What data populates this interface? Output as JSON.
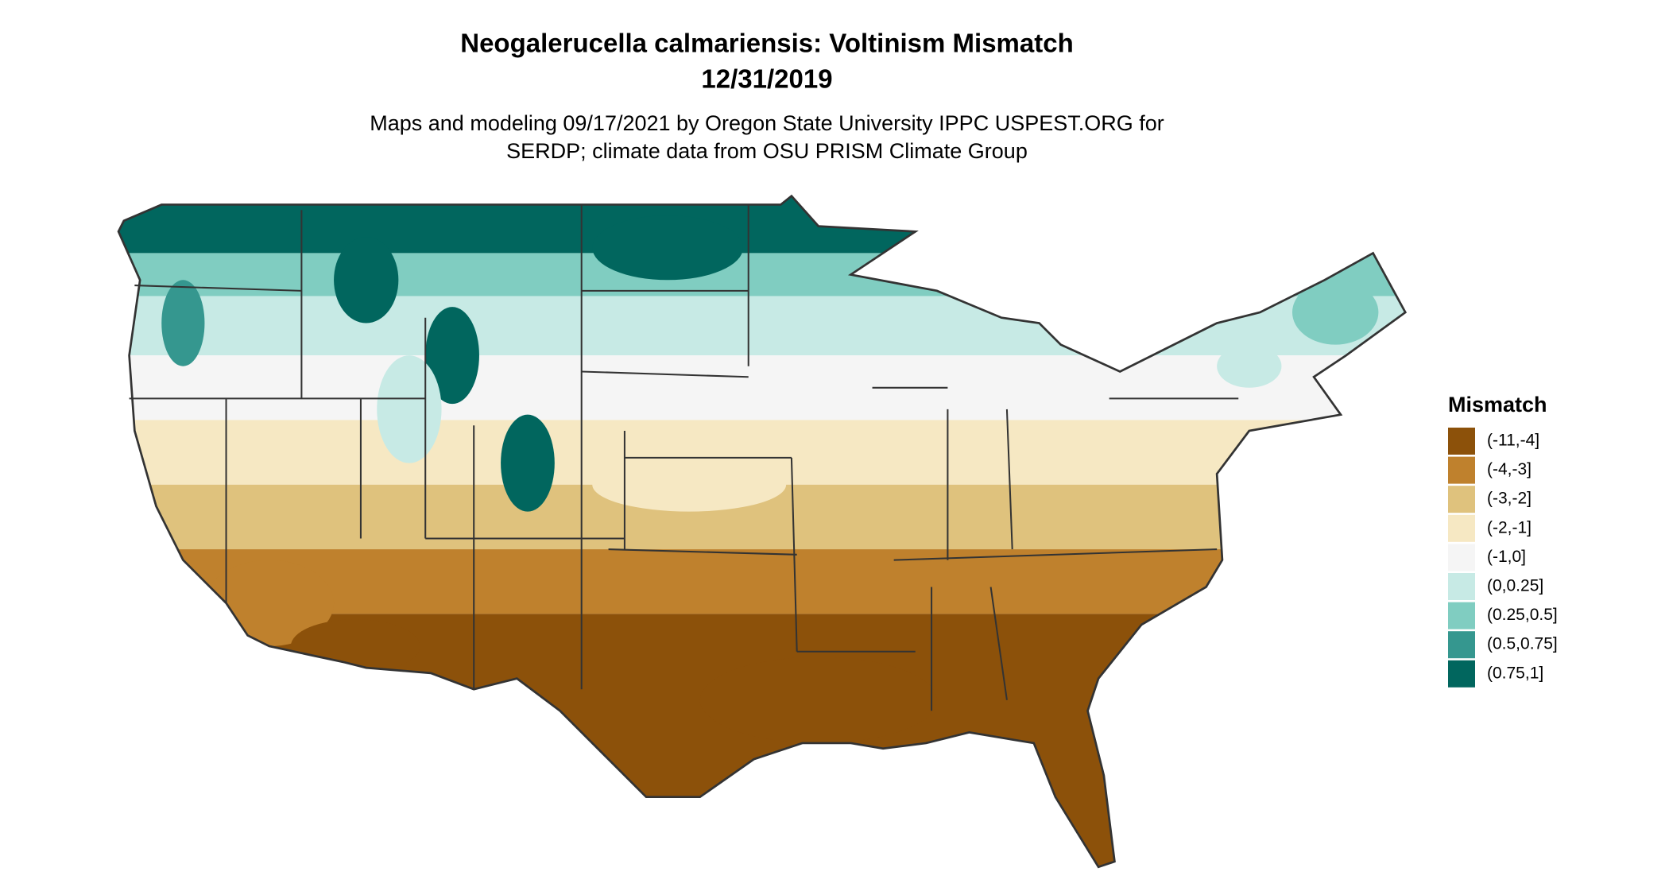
{
  "title": "Neogalerucella calmariensis: Voltinism Mismatch",
  "date": "12/31/2019",
  "subtitle": [
    "Maps and modeling 09/17/2021 by Oregon State University IPPC USPEST.ORG for",
    "SERDP; climate data from OSU PRISM Climate Group"
  ],
  "legend": {
    "title": "Mismatch",
    "items": [
      {
        "label": "(-11,-4]",
        "color": "#8c510a"
      },
      {
        "label": "(-4,-3]",
        "color": "#bf812d"
      },
      {
        "label": "(-3,-2]",
        "color": "#dfc27d"
      },
      {
        "label": "(-2,-1]",
        "color": "#f6e8c3"
      },
      {
        "label": "(-1,0]",
        "color": "#f5f5f5"
      },
      {
        "label": "(0,0.25]",
        "color": "#c7eae5"
      },
      {
        "label": "(0.25,0.5]",
        "color": "#80cdc1"
      },
      {
        "label": "(0.5,0.75]",
        "color": "#35978f"
      },
      {
        "label": "(0.75,1]",
        "color": "#01665e"
      }
    ]
  }
}
